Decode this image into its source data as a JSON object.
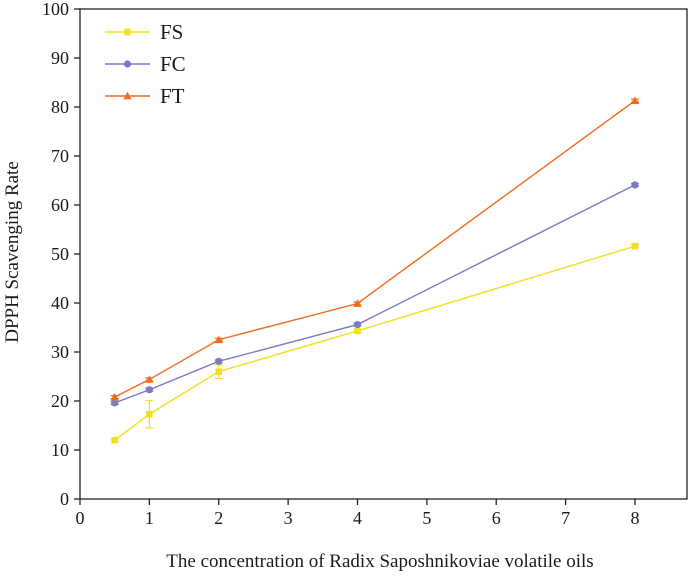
{
  "chart_data": {
    "type": "line",
    "title": "",
    "xlabel": "The concentration of Radix Saposhnikoviae volatile oils",
    "ylabel": "DPPH Scavenging Rate",
    "x_ticks": [
      "0",
      "1",
      "2",
      "3",
      "4",
      "5",
      "6",
      "7",
      "8"
    ],
    "y_ticks": [
      "0",
      "10",
      "20",
      "30",
      "40",
      "50",
      "60",
      "70",
      "80",
      "90",
      "100"
    ],
    "x_tick_values": [
      0,
      1,
      2,
      3,
      4,
      5,
      6,
      7,
      8
    ],
    "y_tick_values": [
      0,
      10,
      20,
      30,
      40,
      50,
      60,
      70,
      80,
      90,
      100
    ],
    "x": [
      0.5,
      1,
      2,
      4,
      8
    ],
    "xlim": [
      0,
      8.75
    ],
    "ylim": [
      0,
      100
    ],
    "grid": false,
    "legend_position": "top-left",
    "series": [
      {
        "name": "FS",
        "values": [
          12.0,
          17.3,
          26.0,
          34.3,
          51.6
        ],
        "errors": [
          0.3,
          2.8,
          1.4,
          0.3,
          0.3
        ],
        "color": "#f2e01c",
        "marker": "square"
      },
      {
        "name": "FC",
        "values": [
          19.6,
          22.3,
          28.1,
          35.6,
          64.1
        ],
        "errors": [
          0.3,
          0.3,
          0.3,
          0.3,
          0.3
        ],
        "color": "#7a7cc2",
        "marker": "circle"
      },
      {
        "name": "FT",
        "values": [
          20.8,
          24.4,
          32.5,
          39.9,
          81.3
        ],
        "errors": [
          0.3,
          0.3,
          0.3,
          0.3,
          0.3
        ],
        "color": "#f26b1d",
        "marker": "triangle"
      }
    ]
  }
}
